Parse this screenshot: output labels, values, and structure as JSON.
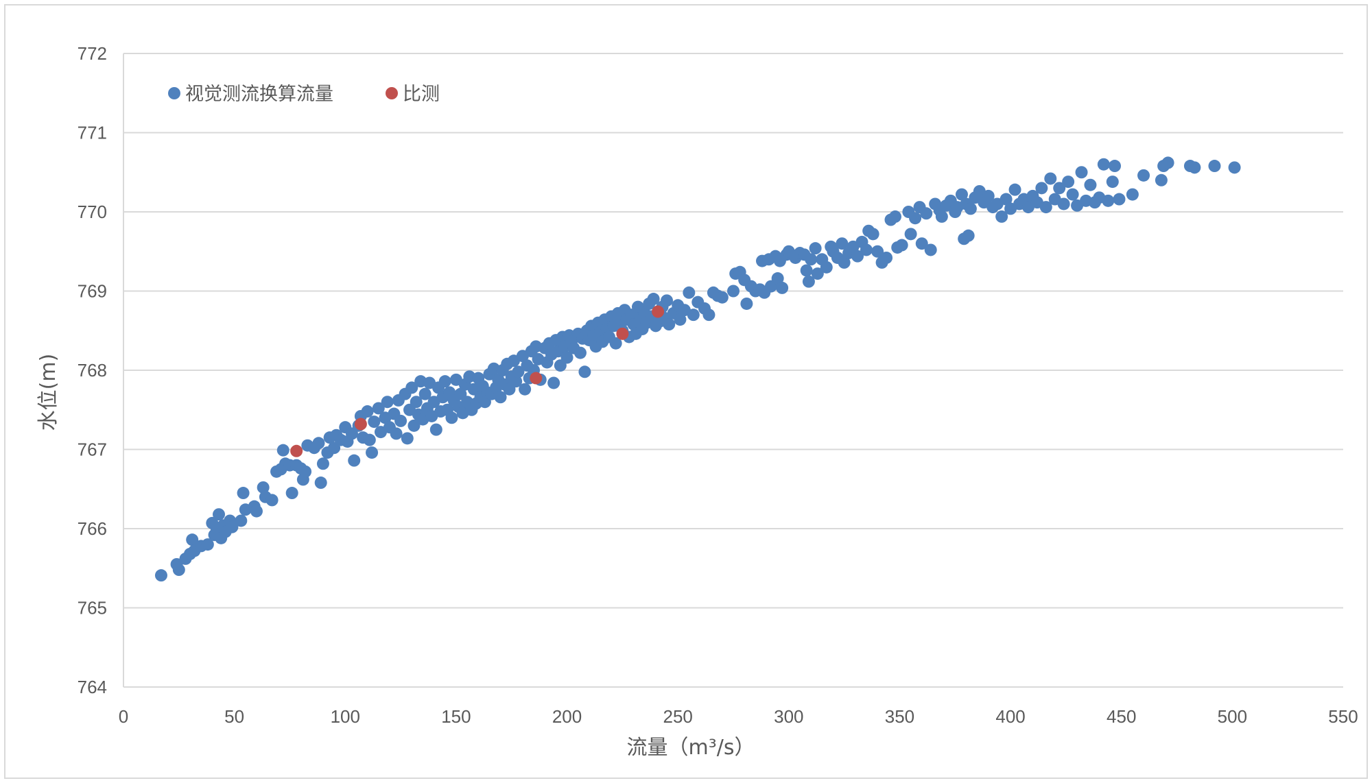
{
  "chart_data": {
    "type": "scatter",
    "title": "",
    "xlabel": "流量（m³/s）",
    "ylabel": "水位(m)",
    "xlim": [
      0,
      550
    ],
    "ylim": [
      764,
      772
    ],
    "x_ticks": [
      0,
      50,
      100,
      150,
      200,
      250,
      300,
      350,
      400,
      450,
      500,
      550
    ],
    "y_ticks": [
      764,
      765,
      766,
      767,
      768,
      769,
      770,
      771,
      772
    ],
    "grid": "horizontal",
    "legend_position": "top-left",
    "colors": {
      "series1": "#4f81bd",
      "series2": "#c0504d",
      "grid": "#d9d9d9"
    },
    "series": [
      {
        "name": "视觉测流换算流量",
        "color": "#4f81bd",
        "points": [
          [
            17,
            765.41
          ],
          [
            24,
            765.55
          ],
          [
            25,
            765.48
          ],
          [
            28,
            765.62
          ],
          [
            30,
            765.68
          ],
          [
            31,
            765.86
          ],
          [
            32,
            765.72
          ],
          [
            35,
            765.78
          ],
          [
            38,
            765.8
          ],
          [
            40,
            766.07
          ],
          [
            41,
            765.92
          ],
          [
            42,
            766.0
          ],
          [
            43,
            766.18
          ],
          [
            44,
            765.88
          ],
          [
            45,
            766.04
          ],
          [
            46,
            765.96
          ],
          [
            48,
            766.1
          ],
          [
            49,
            766.02
          ],
          [
            53,
            766.1
          ],
          [
            54,
            766.45
          ],
          [
            55,
            766.24
          ],
          [
            59,
            766.28
          ],
          [
            60,
            766.22
          ],
          [
            63,
            766.52
          ],
          [
            64,
            766.4
          ],
          [
            67,
            766.36
          ],
          [
            69,
            766.72
          ],
          [
            71,
            766.75
          ],
          [
            72,
            766.99
          ],
          [
            73,
            766.82
          ],
          [
            75,
            766.8
          ],
          [
            76,
            766.45
          ],
          [
            78,
            766.8
          ],
          [
            80,
            766.76
          ],
          [
            81,
            766.62
          ],
          [
            82,
            766.72
          ],
          [
            83,
            767.05
          ],
          [
            86,
            767.02
          ],
          [
            88,
            767.08
          ],
          [
            89,
            766.58
          ],
          [
            90,
            766.82
          ],
          [
            92,
            766.96
          ],
          [
            93,
            767.15
          ],
          [
            95,
            767.02
          ],
          [
            96,
            767.18
          ],
          [
            98,
            767.12
          ],
          [
            100,
            767.28
          ],
          [
            101,
            767.1
          ],
          [
            103,
            767.2
          ],
          [
            104,
            766.86
          ],
          [
            106,
            767.3
          ],
          [
            107,
            767.42
          ],
          [
            108,
            767.15
          ],
          [
            110,
            767.48
          ],
          [
            111,
            767.12
          ],
          [
            112,
            766.96
          ],
          [
            113,
            767.35
          ],
          [
            115,
            767.52
          ],
          [
            116,
            767.22
          ],
          [
            118,
            767.4
          ],
          [
            119,
            767.6
          ],
          [
            120,
            767.28
          ],
          [
            122,
            767.45
          ],
          [
            123,
            767.2
          ],
          [
            124,
            767.62
          ],
          [
            125,
            767.36
          ],
          [
            127,
            767.7
          ],
          [
            128,
            767.14
          ],
          [
            129,
            767.5
          ],
          [
            130,
            767.78
          ],
          [
            131,
            767.3
          ],
          [
            132,
            767.6
          ],
          [
            133,
            767.44
          ],
          [
            134,
            767.86
          ],
          [
            135,
            767.38
          ],
          [
            136,
            767.7
          ],
          [
            137,
            767.52
          ],
          [
            138,
            767.84
          ],
          [
            139,
            767.42
          ],
          [
            140,
            767.6
          ],
          [
            141,
            767.25
          ],
          [
            142,
            767.78
          ],
          [
            143,
            767.48
          ],
          [
            144,
            767.66
          ],
          [
            145,
            767.86
          ],
          [
            146,
            767.5
          ],
          [
            147,
            767.72
          ],
          [
            148,
            767.4
          ],
          [
            149,
            767.62
          ],
          [
            150,
            767.88
          ],
          [
            151,
            767.54
          ],
          [
            152,
            767.7
          ],
          [
            153,
            767.46
          ],
          [
            154,
            767.82
          ],
          [
            155,
            767.6
          ],
          [
            156,
            767.92
          ],
          [
            157,
            767.5
          ],
          [
            158,
            767.76
          ],
          [
            159,
            767.58
          ],
          [
            160,
            767.9
          ],
          [
            161,
            767.66
          ],
          [
            162,
            767.8
          ],
          [
            163,
            767.6
          ],
          [
            164,
            767.72
          ],
          [
            165,
            767.95
          ],
          [
            166,
            767.7
          ],
          [
            167,
            768.02
          ],
          [
            168,
            767.78
          ],
          [
            169,
            767.88
          ],
          [
            170,
            767.66
          ],
          [
            171,
            768.0
          ],
          [
            172,
            767.82
          ],
          [
            173,
            768.08
          ],
          [
            174,
            767.76
          ],
          [
            175,
            767.92
          ],
          [
            176,
            768.12
          ],
          [
            177,
            767.86
          ],
          [
            178,
            767.98
          ],
          [
            180,
            768.18
          ],
          [
            181,
            767.76
          ],
          [
            182,
            768.06
          ],
          [
            183,
            767.9
          ],
          [
            184,
            768.24
          ],
          [
            185,
            768.0
          ],
          [
            186,
            768.3
          ],
          [
            187,
            768.14
          ],
          [
            188,
            767.88
          ],
          [
            190,
            768.28
          ],
          [
            191,
            768.1
          ],
          [
            192,
            768.34
          ],
          [
            193,
            768.2
          ],
          [
            194,
            767.84
          ],
          [
            195,
            768.38
          ],
          [
            196,
            768.24
          ],
          [
            197,
            768.06
          ],
          [
            198,
            768.42
          ],
          [
            199,
            768.3
          ],
          [
            200,
            768.16
          ],
          [
            201,
            768.44
          ],
          [
            202,
            768.36
          ],
          [
            203,
            768.28
          ],
          [
            205,
            768.46
          ],
          [
            206,
            768.22
          ],
          [
            207,
            768.4
          ],
          [
            208,
            767.98
          ],
          [
            209,
            768.5
          ],
          [
            210,
            768.38
          ],
          [
            211,
            768.56
          ],
          [
            212,
            768.44
          ],
          [
            213,
            768.3
          ],
          [
            214,
            768.6
          ],
          [
            215,
            768.48
          ],
          [
            216,
            768.36
          ],
          [
            217,
            768.64
          ],
          [
            218,
            768.52
          ],
          [
            219,
            768.42
          ],
          [
            220,
            768.68
          ],
          [
            221,
            768.56
          ],
          [
            222,
            768.34
          ],
          [
            223,
            768.72
          ],
          [
            224,
            768.6
          ],
          [
            225,
            768.5
          ],
          [
            226,
            768.76
          ],
          [
            227,
            768.64
          ],
          [
            228,
            768.42
          ],
          [
            229,
            768.7
          ],
          [
            230,
            768.58
          ],
          [
            231,
            768.46
          ],
          [
            232,
            768.8
          ],
          [
            233,
            768.66
          ],
          [
            234,
            768.52
          ],
          [
            235,
            768.72
          ],
          [
            236,
            768.6
          ],
          [
            237,
            768.84
          ],
          [
            238,
            768.68
          ],
          [
            239,
            768.9
          ],
          [
            240,
            768.56
          ],
          [
            241,
            768.74
          ],
          [
            242,
            768.62
          ],
          [
            243,
            768.8
          ],
          [
            244,
            768.66
          ],
          [
            245,
            768.88
          ],
          [
            246,
            768.58
          ],
          [
            248,
            768.72
          ],
          [
            250,
            768.82
          ],
          [
            251,
            768.64
          ],
          [
            253,
            768.76
          ],
          [
            255,
            768.98
          ],
          [
            257,
            768.7
          ],
          [
            259,
            768.86
          ],
          [
            262,
            768.78
          ],
          [
            264,
            768.7
          ],
          [
            266,
            768.98
          ],
          [
            268,
            768.94
          ],
          [
            270,
            768.92
          ],
          [
            275,
            769.0
          ],
          [
            276,
            769.22
          ],
          [
            278,
            769.24
          ],
          [
            280,
            769.14
          ],
          [
            281,
            768.84
          ],
          [
            283,
            769.06
          ],
          [
            285,
            769.0
          ],
          [
            287,
            769.02
          ],
          [
            288,
            769.38
          ],
          [
            289,
            768.98
          ],
          [
            291,
            769.4
          ],
          [
            292,
            769.06
          ],
          [
            294,
            769.44
          ],
          [
            295,
            769.16
          ],
          [
            296,
            769.38
          ],
          [
            297,
            769.04
          ],
          [
            299,
            769.46
          ],
          [
            300,
            769.5
          ],
          [
            303,
            769.42
          ],
          [
            305,
            769.48
          ],
          [
            307,
            769.46
          ],
          [
            308,
            769.26
          ],
          [
            309,
            769.12
          ],
          [
            310,
            769.4
          ],
          [
            312,
            769.54
          ],
          [
            313,
            769.22
          ],
          [
            315,
            769.4
          ],
          [
            317,
            769.3
          ],
          [
            319,
            769.56
          ],
          [
            320,
            769.5
          ],
          [
            322,
            769.42
          ],
          [
            324,
            769.6
          ],
          [
            325,
            769.36
          ],
          [
            327,
            769.48
          ],
          [
            329,
            769.56
          ],
          [
            331,
            769.44
          ],
          [
            333,
            769.62
          ],
          [
            335,
            769.52
          ],
          [
            336,
            769.76
          ],
          [
            338,
            769.72
          ],
          [
            340,
            769.5
          ],
          [
            342,
            769.36
          ],
          [
            344,
            769.42
          ],
          [
            346,
            769.9
          ],
          [
            348,
            769.94
          ],
          [
            349,
            769.55
          ],
          [
            351,
            769.58
          ],
          [
            354,
            770.0
          ],
          [
            355,
            769.72
          ],
          [
            357,
            769.92
          ],
          [
            359,
            770.06
          ],
          [
            360,
            769.6
          ],
          [
            362,
            769.98
          ],
          [
            364,
            769.52
          ],
          [
            366,
            770.1
          ],
          [
            368,
            770.02
          ],
          [
            369,
            769.94
          ],
          [
            371,
            770.08
          ],
          [
            373,
            770.14
          ],
          [
            375,
            770.0
          ],
          [
            376,
            770.06
          ],
          [
            378,
            770.22
          ],
          [
            379,
            769.66
          ],
          [
            380,
            770.1
          ],
          [
            381,
            769.7
          ],
          [
            382,
            770.04
          ],
          [
            384,
            770.18
          ],
          [
            386,
            770.26
          ],
          [
            388,
            770.12
          ],
          [
            390,
            770.2
          ],
          [
            392,
            770.06
          ],
          [
            394,
            770.1
          ],
          [
            396,
            769.94
          ],
          [
            398,
            770.16
          ],
          [
            400,
            770.04
          ],
          [
            402,
            770.28
          ],
          [
            404,
            770.1
          ],
          [
            406,
            770.16
          ],
          [
            408,
            770.06
          ],
          [
            410,
            770.2
          ],
          [
            412,
            770.12
          ],
          [
            414,
            770.3
          ],
          [
            416,
            770.06
          ],
          [
            418,
            770.42
          ],
          [
            420,
            770.16
          ],
          [
            422,
            770.3
          ],
          [
            424,
            770.1
          ],
          [
            426,
            770.38
          ],
          [
            428,
            770.22
          ],
          [
            430,
            770.08
          ],
          [
            432,
            770.5
          ],
          [
            434,
            770.14
          ],
          [
            436,
            770.34
          ],
          [
            438,
            770.12
          ],
          [
            440,
            770.18
          ],
          [
            442,
            770.6
          ],
          [
            444,
            770.14
          ],
          [
            446,
            770.38
          ],
          [
            447,
            770.58
          ],
          [
            449,
            770.16
          ],
          [
            455,
            770.22
          ],
          [
            460,
            770.46
          ],
          [
            468,
            770.4
          ],
          [
            469,
            770.58
          ],
          [
            471,
            770.62
          ],
          [
            481,
            770.58
          ],
          [
            483,
            770.56
          ],
          [
            492,
            770.58
          ],
          [
            501,
            770.56
          ]
        ]
      },
      {
        "name": "比测",
        "color": "#c0504d",
        "points": [
          [
            78,
            766.98
          ],
          [
            107,
            767.32
          ],
          [
            186,
            767.9
          ],
          [
            225,
            768.46
          ],
          [
            241,
            768.74
          ]
        ]
      }
    ]
  }
}
